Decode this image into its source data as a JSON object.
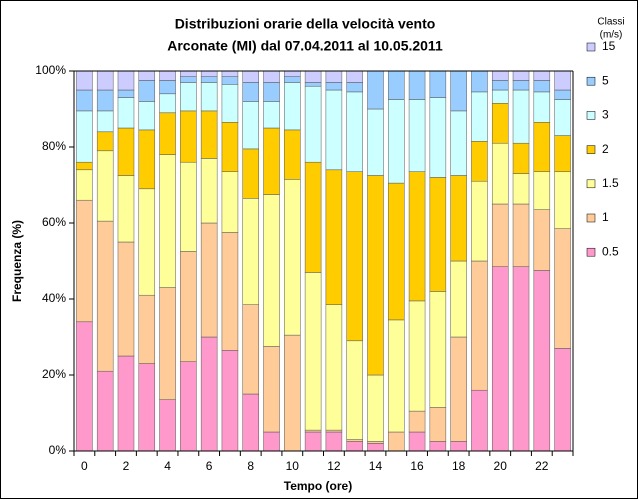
{
  "chart_data": {
    "type": "stacked_bar",
    "title": [
      "Distribuzioni orarie della velocità vento",
      "Arconate (MI) dal 07.04.2011 al 10.05.2011"
    ],
    "x_label": "Tempo (ore)",
    "y_label": "Frequenza (%)",
    "legend_title": [
      "Classi",
      "(m/s)"
    ],
    "legend": "right",
    "categories": [
      0,
      null,
      2,
      null,
      4,
      null,
      6,
      null,
      8,
      null,
      10,
      null,
      12,
      null,
      14,
      null,
      16,
      null,
      18,
      null,
      20,
      null,
      22,
      null
    ],
    "ylim": [
      0,
      100
    ],
    "yticks": [
      {
        "value": 0,
        "label": "0%"
      },
      {
        "value": 20,
        "label": "20%"
      },
      {
        "value": 40,
        "label": "40%"
      },
      {
        "value": 60,
        "label": "60%"
      },
      {
        "value": 80,
        "label": "80%"
      },
      {
        "value": 100,
        "label": "100%"
      }
    ],
    "series": [
      {
        "name": "0.5",
        "color": "#ff99cc",
        "values": [
          34,
          21,
          25,
          23,
          13.5,
          23.5,
          30,
          26.5,
          15,
          5,
          0,
          5,
          5,
          2.5,
          2,
          0,
          5,
          2.5,
          2.5,
          16,
          48.5,
          48.5,
          47.5,
          27
        ]
      },
      {
        "name": "1",
        "color": "#ffcc99",
        "values": [
          32,
          39.5,
          30,
          18,
          29.5,
          29,
          30,
          31,
          23.5,
          22.5,
          30.5,
          0.5,
          0.5,
          0.5,
          0.5,
          5,
          5.5,
          9,
          27.5,
          34,
          16.5,
          16.5,
          16,
          31.5
        ]
      },
      {
        "name": "1.5",
        "color": "#ffff99",
        "values": [
          8,
          18.5,
          17.5,
          28,
          35,
          23.5,
          17,
          16,
          28,
          40,
          41,
          41.5,
          33,
          26,
          17.5,
          29.5,
          29,
          30.5,
          20,
          21,
          16,
          8,
          10,
          15
        ]
      },
      {
        "name": "2",
        "color": "#ffcc00",
        "values": [
          2,
          5,
          12.5,
          15.5,
          11,
          13.5,
          12.5,
          13,
          13,
          17.5,
          13,
          29,
          35.5,
          44.5,
          52.5,
          36,
          34,
          30,
          22.5,
          10.5,
          10.5,
          8,
          13,
          9.5
        ]
      },
      {
        "name": "3",
        "color": "#ccffff",
        "values": [
          13.5,
          5.5,
          8,
          7.5,
          5,
          7.5,
          7.5,
          10,
          12.5,
          7,
          12.5,
          20,
          21,
          21,
          17.5,
          22,
          19,
          21,
          17,
          13,
          3.5,
          14,
          8,
          9.5
        ]
      },
      {
        "name": "5",
        "color": "#99ccff",
        "values": [
          5.5,
          5.5,
          2,
          5.5,
          3.5,
          1.5,
          1.5,
          2,
          5,
          5,
          1.5,
          1,
          2,
          2.5,
          10,
          7.5,
          7.5,
          7,
          10.5,
          5.5,
          2.5,
          2.5,
          3,
          2.5
        ]
      },
      {
        "name": "15",
        "color": "#ccccff",
        "values": [
          5,
          5,
          5,
          2.5,
          2.5,
          1.5,
          1.5,
          1.5,
          3,
          3,
          1.5,
          3,
          3,
          3,
          0,
          0,
          0,
          0,
          0,
          0,
          2.5,
          2.5,
          2.5,
          5
        ]
      }
    ]
  }
}
